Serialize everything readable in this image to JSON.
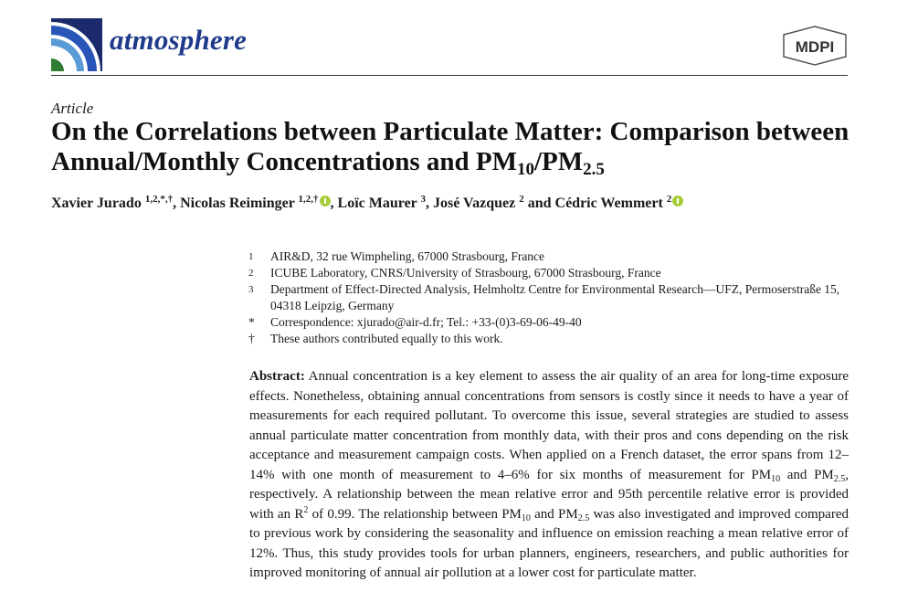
{
  "header": {
    "journal_name": "atmosphere",
    "publisher_logo_text": "MDPI",
    "icons": {
      "journal_logo": "atmosphere-logo-icon",
      "publisher_logo": "mdpi-logo-icon"
    },
    "colors": {
      "journal_blue": "#1f3a8a",
      "orcid_green": "#a6ce39"
    }
  },
  "article_type": "Article",
  "title": {
    "part1": "On the Correlations between Particulate Matter: Comparison between Annual/Monthly Concentrations and PM",
    "sub1": "10",
    "mid": "/PM",
    "sub2": "2.5"
  },
  "authors": [
    {
      "name": "Xavier Jurado",
      "sup": "1,2,*,†",
      "sep": ", ",
      "orcid": false
    },
    {
      "name": "Nicolas Reiminger",
      "sup": "1,2,†",
      "sep": ", ",
      "orcid": true
    },
    {
      "name": "Loïc Maurer",
      "sup": "3",
      "sep": ", ",
      "orcid": false
    },
    {
      "name": "José Vazquez",
      "sup": "2",
      "sep": " and ",
      "orcid": false
    },
    {
      "name": "Cédric Wemmert",
      "sup": "2",
      "sep": "",
      "orcid": true
    }
  ],
  "affiliations": [
    {
      "mark": "1",
      "text": "AIR&D, 32 rue Wimpheling, 67000 Strasbourg, France"
    },
    {
      "mark": "2",
      "text": "ICUBE Laboratory, CNRS/University of Strasbourg, 67000 Strasbourg, France"
    },
    {
      "mark": "3",
      "text": "Department of Effect-Directed Analysis, Helmholtz Centre for Environmental Research—UFZ, Permoserstraße 15, 04318 Leipzig, Germany"
    },
    {
      "mark": "*",
      "text": "Correspondence: xjurado@air-d.fr; Tel.: +33-(0)3-69-06-49-40"
    },
    {
      "mark": "†",
      "text": "These authors contributed equally to this work."
    }
  ],
  "abstract": {
    "label": "Abstract:",
    "s1": " Annual concentration is a key element to assess the air quality of an area for long-time exposure effects. Nonetheless, obtaining annual concentrations from sensors is costly since it needs to have a year of measurements for each required pollutant. To overcome this issue, several strategies are studied to assess annual particulate matter concentration from monthly data, with their pros and cons depending on the risk acceptance and measurement campaign costs. When applied on a French dataset, the error spans from 12–14% with one month of measurement to 4–6% for six months of measurement for PM",
    "s1_sub": "10",
    "s2": " and PM",
    "s2_sub": "2.5",
    "s3": ", respectively. A relationship between the mean relative error and 95th percentile relative error is provided with an R",
    "s3_sup": "2",
    "s4": " of 0.99. The relationship between PM",
    "s4_sub": "10",
    "s5": " and PM",
    "s5_sub": "2.5",
    "s6": " was also investigated and improved compared to previous work by considering the seasonality and influence on emission reaching a mean relative error of 12%. Thus, this study provides tools for urban planners, engineers, researchers, and public authorities for improved monitoring of annual air pollution at a lower cost for particulate matter."
  }
}
